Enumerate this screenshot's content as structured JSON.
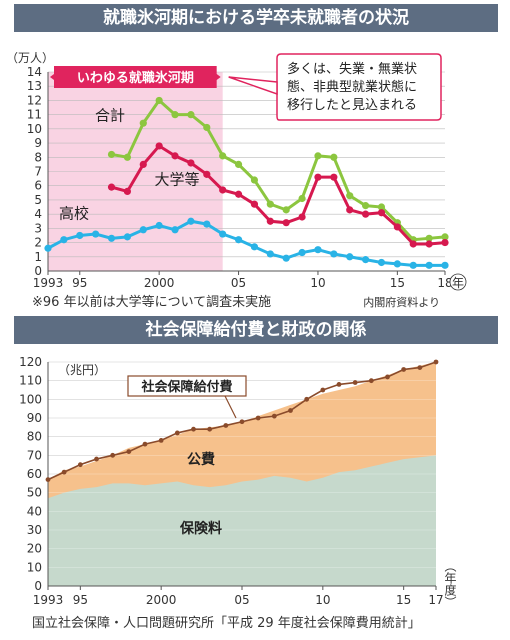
{
  "titles": {
    "top": "就職氷河期における学卒未就職者の状況",
    "bottom": "社会保障給付費と財政の関係"
  },
  "chart_data": [
    {
      "type": "line",
      "title": "就職氷河期における学卒未就職者の状況",
      "unit_label": "（万人）",
      "x_unit": "年",
      "xlim": [
        1993,
        2018
      ],
      "ylim": [
        0,
        14
      ],
      "yticks": [
        0,
        1,
        2,
        3,
        4,
        5,
        6,
        7,
        8,
        9,
        10,
        11,
        12,
        13,
        14
      ],
      "xtick_labels": [
        {
          "x": 1993,
          "label": "1993"
        },
        {
          "x": 1995,
          "label": "95"
        },
        {
          "x": 2000,
          "label": "2000"
        },
        {
          "x": 2005,
          "label": "05"
        },
        {
          "x": 2010,
          "label": "10"
        },
        {
          "x": 2015,
          "label": "15"
        },
        {
          "x": 2018,
          "label": "18"
        }
      ],
      "grid": true,
      "shaded_period": {
        "from": 1993,
        "to": 2004,
        "label": "いわゆる就職氷河期",
        "color": "#f9d3e3"
      },
      "callout": "多くは、失業・無業状態、非典型就業状態に移行したと見込まれる",
      "footnote": "※96 年以前は大学等について調査未実施",
      "source": "内閣府資料より",
      "series": [
        {
          "name": "合計",
          "color": "#8cc63f",
          "x": [
            1997,
            1998,
            1999,
            2000,
            2001,
            2002,
            2003,
            2004,
            2005,
            2006,
            2007,
            2008,
            2009,
            2010,
            2011,
            2012,
            2013,
            2014,
            2015,
            2016,
            2017,
            2018
          ],
          "y": [
            8.2,
            8.0,
            10.4,
            12.0,
            11.0,
            11.0,
            10.1,
            8.1,
            7.5,
            6.4,
            4.7,
            4.3,
            5.1,
            8.1,
            8.0,
            5.3,
            4.6,
            4.5,
            3.4,
            2.2,
            2.3,
            2.4
          ]
        },
        {
          "name": "大学等",
          "color": "#d6194f",
          "x": [
            1997,
            1998,
            1999,
            2000,
            2001,
            2002,
            2003,
            2004,
            2005,
            2006,
            2007,
            2008,
            2009,
            2010,
            2011,
            2012,
            2013,
            2014,
            2015,
            2016,
            2017,
            2018
          ],
          "y": [
            5.9,
            5.6,
            7.5,
            8.8,
            8.1,
            7.6,
            6.8,
            5.7,
            5.4,
            4.7,
            3.5,
            3.4,
            3.8,
            6.6,
            6.6,
            4.3,
            4.0,
            4.1,
            3.1,
            1.9,
            1.9,
            2.0
          ]
        },
        {
          "name": "高校",
          "color": "#29b3e6",
          "x": [
            1993,
            1994,
            1995,
            1996,
            1997,
            1998,
            1999,
            2000,
            2001,
            2002,
            2003,
            2004,
            2005,
            2006,
            2007,
            2008,
            2009,
            2010,
            2011,
            2012,
            2013,
            2014,
            2015,
            2016,
            2017,
            2018
          ],
          "y": [
            1.6,
            2.2,
            2.5,
            2.6,
            2.3,
            2.4,
            2.9,
            3.2,
            2.9,
            3.5,
            3.3,
            2.6,
            2.2,
            1.7,
            1.2,
            0.9,
            1.3,
            1.5,
            1.2,
            1.0,
            0.8,
            0.6,
            0.5,
            0.4,
            0.4,
            0.4
          ]
        }
      ]
    },
    {
      "type": "area",
      "title": "社会保障給付費と財政の関係",
      "unit_label": "（兆円）",
      "x_unit": "（年度）",
      "xlim": [
        1993,
        2017
      ],
      "ylim": [
        0,
        120
      ],
      "yticks": [
        0,
        10,
        20,
        30,
        40,
        50,
        60,
        70,
        80,
        90,
        100,
        110,
        120
      ],
      "xtick_labels": [
        {
          "x": 1993,
          "label": "1993"
        },
        {
          "x": 1995,
          "label": "95"
        },
        {
          "x": 2000,
          "label": "2000"
        },
        {
          "x": 2005,
          "label": "05"
        },
        {
          "x": 2010,
          "label": "10"
        },
        {
          "x": 2015,
          "label": "15"
        },
        {
          "x": 2017,
          "label": "17"
        }
      ],
      "grid": true,
      "source": "国立社会保障・人口問題研究所「平成 29 年度社会保障費用統計」",
      "x": [
        1993,
        1994,
        1995,
        1996,
        1997,
        1998,
        1999,
        2000,
        2001,
        2002,
        2003,
        2004,
        2005,
        2006,
        2007,
        2008,
        2009,
        2010,
        2011,
        2012,
        2013,
        2014,
        2015,
        2016,
        2017
      ],
      "areas": [
        {
          "name": "保険料",
          "color": "#c6d9cc",
          "values": [
            47,
            50,
            52,
            53,
            55,
            55,
            54,
            55,
            56,
            54,
            53,
            54,
            56,
            57,
            59,
            58,
            56,
            58,
            61,
            62,
            64,
            66,
            68,
            69,
            70
          ]
        },
        {
          "name": "公費",
          "color": "#f6c18c",
          "values": [
            57,
            62,
            64,
            67,
            70,
            74,
            76,
            78,
            81,
            84,
            85,
            86,
            88,
            91,
            94,
            97,
            100,
            103,
            105,
            107,
            110,
            113,
            116,
            118,
            120
          ]
        }
      ],
      "series": [
        {
          "name": "社会保障給付費",
          "color": "#8a4b2b",
          "values": [
            57,
            61,
            65,
            68,
            70,
            72,
            76,
            78,
            82,
            84,
            84,
            86,
            88,
            90,
            91,
            94,
            100,
            105,
            108,
            109,
            110,
            112,
            116,
            117,
            120
          ]
        }
      ]
    }
  ]
}
